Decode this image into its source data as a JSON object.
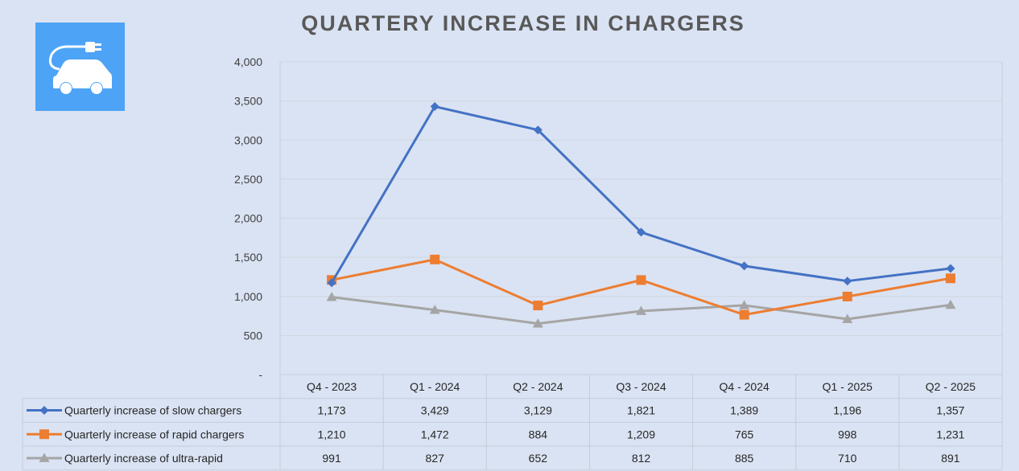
{
  "chart_data": {
    "type": "line",
    "title": "QUARTERY INCREASE IN CHARGERS",
    "categories": [
      "Q4 - 2023",
      "Q1 - 2024",
      "Q2 - 2024",
      "Q3 - 2024",
      "Q4 - 2024",
      "Q1 - 2025",
      "Q2 - 2025"
    ],
    "ylim": [
      0,
      4000
    ],
    "yticks": [
      0,
      500,
      1000,
      1500,
      2000,
      2500,
      3000,
      3500,
      4000
    ],
    "ytick_labels": [
      "-",
      "500",
      "1,000",
      "1,500",
      "2,000",
      "2,500",
      "3,000",
      "3,500",
      "4,000"
    ],
    "grid": true,
    "legend_placement": "data-table",
    "series": [
      {
        "name": "Quarterly increase of slow chargers",
        "marker": "diamond",
        "color": "#4472c4",
        "values": [
          1173,
          3429,
          3129,
          1821,
          1389,
          1196,
          1357
        ],
        "labels": [
          "1,173",
          "3,429",
          "3,129",
          "1,821",
          "1,389",
          "1,196",
          "1,357"
        ]
      },
      {
        "name": "Quarterly increase of rapid chargers",
        "marker": "square",
        "color": "#ed7d31",
        "values": [
          1210,
          1472,
          884,
          1209,
          765,
          998,
          1231
        ],
        "labels": [
          "1,210",
          "1,472",
          "884",
          "1,209",
          "765",
          "998",
          "1,231"
        ]
      },
      {
        "name": "Quarterly increase of ultra-rapid",
        "marker": "triangle",
        "color": "#a5a5a5",
        "values": [
          991,
          827,
          652,
          812,
          885,
          710,
          891
        ],
        "labels": [
          "991",
          "827",
          "652",
          "812",
          "885",
          "710",
          "891"
        ]
      }
    ]
  },
  "logo": {
    "icon": "ev-charging-car-icon",
    "background": "#4da3f5"
  }
}
